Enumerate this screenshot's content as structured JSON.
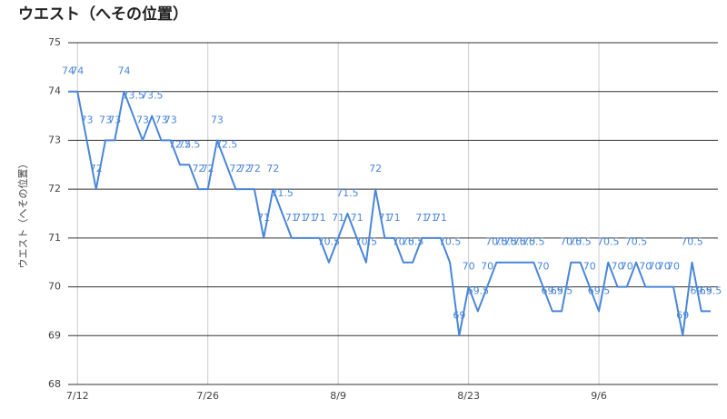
{
  "chart_data": {
    "type": "line",
    "title": "ウエスト（へその位置）",
    "y_label": "ウエスト（へその位置）",
    "categories": [
      null,
      "7/12",
      null,
      null,
      null,
      null,
      null,
      null,
      null,
      null,
      null,
      null,
      null,
      null,
      null,
      "7/26",
      null,
      null,
      null,
      null,
      null,
      null,
      null,
      null,
      null,
      null,
      null,
      null,
      null,
      "8/9",
      null,
      null,
      null,
      null,
      null,
      null,
      null,
      null,
      null,
      null,
      null,
      null,
      null,
      "8/23",
      null,
      null,
      null,
      null,
      null,
      null,
      null,
      null,
      null,
      null,
      null,
      null,
      null,
      "9/6",
      null,
      null,
      null,
      null,
      null,
      null,
      null,
      null,
      null,
      null,
      null,
      null
    ],
    "series": [
      {
        "name": "ウエスト（へその位置）",
        "color": "#4a86d8",
        "values": [
          74,
          74,
          73,
          72,
          73,
          73,
          74,
          73.5,
          73,
          73.5,
          73,
          73,
          72.5,
          72.5,
          72,
          72,
          73,
          72.5,
          72,
          72,
          72,
          71,
          72,
          71.5,
          71,
          71,
          71,
          71,
          70.5,
          71,
          71.5,
          71,
          70.5,
          72,
          71,
          71,
          70.5,
          70.5,
          71,
          71,
          71,
          70.5,
          69,
          70,
          69.5,
          70,
          70.5,
          70.5,
          70.5,
          70.5,
          70.5,
          70,
          69.5,
          69.5,
          70.5,
          70.5,
          70,
          69.5,
          70.5,
          70,
          70,
          70.5,
          70,
          70,
          70,
          70,
          69,
          70.5,
          69.5,
          69.5
        ]
      }
    ],
    "ylim": [
      68,
      75
    ],
    "yticks": [
      68,
      69,
      70,
      71,
      72,
      73,
      74,
      75
    ],
    "grid": true,
    "data_labels": true
  }
}
